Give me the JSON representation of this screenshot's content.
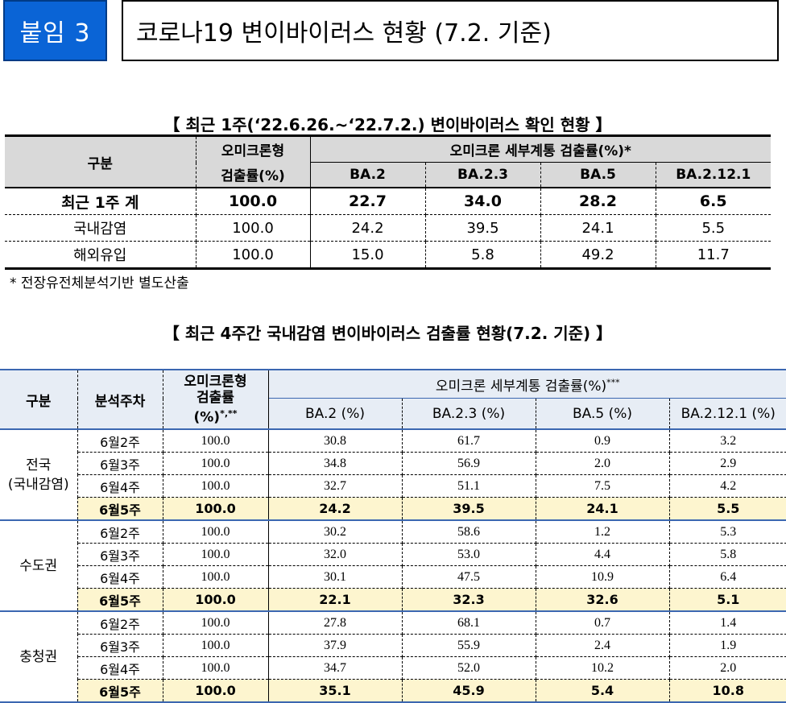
{
  "header": {
    "badge": "붙임 3",
    "title": "코로나19 변이바이러스 현황 (7.2. 기준)"
  },
  "table1": {
    "caption": "【 최근 1주(‘22.6.26.~‘22.7.2.) 변이바이러스 확인 현황 】",
    "headers": {
      "category": "구분",
      "omicron_line1": "오미크론형",
      "omicron_line2": "검출률(%)",
      "sublineage": "오미크론 세부계통 검출률(%)*",
      "ba2": "BA.2",
      "ba23": "BA.2.3",
      "ba5": "BA.5",
      "ba2121": "BA.2.12.1"
    },
    "rows": [
      {
        "label": "최근 1주 계",
        "omicron": "100.0",
        "ba2": "22.7",
        "ba23": "34.0",
        "ba5": "28.2",
        "ba2121": "6.5"
      },
      {
        "label": "국내감염",
        "omicron": "100.0",
        "ba2": "24.2",
        "ba23": "39.5",
        "ba5": "24.1",
        "ba2121": "5.5"
      },
      {
        "label": "해외유입",
        "omicron": "100.0",
        "ba2": "15.0",
        "ba23": "5.8",
        "ba5": "49.2",
        "ba2121": "11.7"
      }
    ],
    "footnote": "* 전장유전체분석기반 별도산출"
  },
  "table2": {
    "caption": "【 최근 4주간 국내감염 변이바이러스 검출률 현황(7.2. 기준) 】",
    "headers": {
      "category": "구분",
      "week": "분석주차",
      "omicron_line1": "오미크론형",
      "omicron_line2": "검출률",
      "omicron_line3": "(%)",
      "omicron_sup": "*,**",
      "sublineage": "오미크론 세부계통 검출률(%)",
      "sublineage_sup": "***",
      "ba2": "BA.2 (%)",
      "ba23": "BA.2.3 (%)",
      "ba5": "BA.5 (%)",
      "ba2121": "BA.2.12.1 (%)"
    },
    "groups": [
      {
        "region_line1": "전국",
        "region_line2": "(국내감염)",
        "rows": [
          {
            "week": "6월2주",
            "omicron": "100.0",
            "ba2": "30.8",
            "ba23": "61.7",
            "ba5": "0.9",
            "ba2121": "3.2"
          },
          {
            "week": "6월3주",
            "omicron": "100.0",
            "ba2": "34.8",
            "ba23": "56.9",
            "ba5": "2.0",
            "ba2121": "2.9"
          },
          {
            "week": "6월4주",
            "omicron": "100.0",
            "ba2": "32.7",
            "ba23": "51.1",
            "ba5": "7.5",
            "ba2121": "4.2"
          },
          {
            "week": "6월5주",
            "omicron": "100.0",
            "ba2": "24.2",
            "ba23": "39.5",
            "ba5": "24.1",
            "ba2121": "5.5"
          }
        ]
      },
      {
        "region_line1": "수도권",
        "region_line2": "",
        "rows": [
          {
            "week": "6월2주",
            "omicron": "100.0",
            "ba2": "30.2",
            "ba23": "58.6",
            "ba5": "1.2",
            "ba2121": "5.3"
          },
          {
            "week": "6월3주",
            "omicron": "100.0",
            "ba2": "32.0",
            "ba23": "53.0",
            "ba5": "4.4",
            "ba2121": "5.8"
          },
          {
            "week": "6월4주",
            "omicron": "100.0",
            "ba2": "30.1",
            "ba23": "47.5",
            "ba5": "10.9",
            "ba2121": "6.4"
          },
          {
            "week": "6월5주",
            "omicron": "100.0",
            "ba2": "22.1",
            "ba23": "32.3",
            "ba5": "32.6",
            "ba2121": "5.1"
          }
        ]
      },
      {
        "region_line1": "충청권",
        "region_line2": "",
        "rows": [
          {
            "week": "6월2주",
            "omicron": "100.0",
            "ba2": "27.8",
            "ba23": "68.1",
            "ba5": "0.7",
            "ba2121": "1.4"
          },
          {
            "week": "6월3주",
            "omicron": "100.0",
            "ba2": "37.9",
            "ba23": "55.9",
            "ba5": "2.4",
            "ba2121": "1.9"
          },
          {
            "week": "6월4주",
            "omicron": "100.0",
            "ba2": "34.7",
            "ba23": "52.0",
            "ba5": "10.2",
            "ba2121": "2.0"
          },
          {
            "week": "6월5주",
            "omicron": "100.0",
            "ba2": "35.1",
            "ba23": "45.9",
            "ba5": "5.4",
            "ba2121": "10.8"
          }
        ]
      }
    ]
  },
  "colors": {
    "badge_bg": "#0a64d6",
    "header_gray": "#d9d9d9",
    "header_blue": "#e7edf5",
    "highlight_row": "#fdf5cf",
    "rule_blue": "#3b67b1"
  }
}
